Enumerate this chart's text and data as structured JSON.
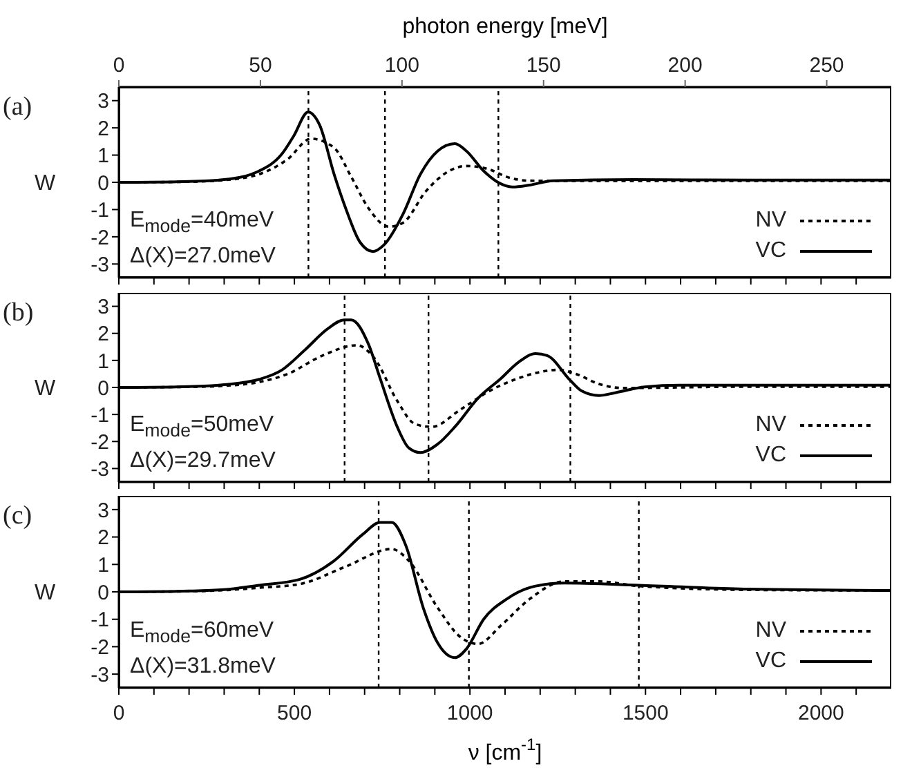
{
  "chart_data": [
    {
      "type": "line",
      "ylabel": "W",
      "x2label": "photon energy [meV]",
      "x2lim": [
        0,
        272.8
      ],
      "x2ticks": [
        0,
        50,
        100,
        150,
        200,
        250
      ],
      "xlim": [
        0,
        2200
      ],
      "xticks": [
        0,
        {
          "value": 100,
          "label": null
        },
        {
          "value": 200,
          "label": null
        },
        {
          "value": 300,
          "label": null
        },
        {
          "value": 400,
          "label": null
        },
        500,
        {
          "value": 600,
          "label": null
        },
        {
          "value": 700,
          "label": null
        },
        {
          "value": 800,
          "label": null
        },
        {
          "value": 900,
          "label": null
        },
        1000,
        {
          "value": 1100,
          "label": null
        },
        {
          "value": 1200,
          "label": null
        },
        {
          "value": 1300,
          "label": null
        },
        {
          "value": 1400,
          "label": null
        },
        1500,
        {
          "value": 1600,
          "label": null
        },
        {
          "value": 1700,
          "label": null
        },
        {
          "value": 1800,
          "label": null
        },
        {
          "value": 1900,
          "label": null
        },
        2000,
        {
          "value": 2100,
          "label": null
        }
      ],
      "ylim": [
        -3.5,
        3.5
      ],
      "yticks": [
        -3,
        -2,
        -1,
        0,
        1,
        2,
        3
      ],
      "tick_labels": "y",
      "legend": "bottom right",
      "grid": false,
      "annotations": [
        "(a)",
        "E$_{mode}$=40meV",
        "Δ(X)=27.0meV"
      ],
      "ref_lines": [
        {
          "axis": "x",
          "value": 540,
          "color": "#000000",
          "line_style": "dotted"
        },
        {
          "axis": "x",
          "value": 758,
          "color": "#000000",
          "line_style": "dotted"
        },
        {
          "axis": "x",
          "value": 1081,
          "color": "#000000",
          "line_style": "dotted"
        }
      ],
      "series": [
        {
          "name": "NV",
          "color": "#000000",
          "line_style": "dotted",
          "x": [
            0,
            200,
            300,
            400,
            481,
            547,
            613,
            662,
            711,
            769,
            810,
            875,
            941,
            990,
            1056,
            1105,
            1170,
            1400,
            1800,
            2200
          ],
          "values": [
            0,
            0.02,
            0.08,
            0.3,
            0.85,
            1.6,
            1.27,
            0.2,
            -0.95,
            -1.63,
            -1.48,
            -0.32,
            0.42,
            0.6,
            0.47,
            0.2,
            0.06,
            0.05,
            0.05,
            0.05
          ]
        },
        {
          "name": "VC",
          "color": "#000000",
          "line_style": "solid",
          "x": [
            0,
            200,
            300,
            400,
            465,
            498,
            539,
            572,
            613,
            646,
            687,
            724,
            755,
            810,
            859,
            908,
            957,
            990,
            1039,
            1080,
            1121,
            1170,
            1236,
            1466,
            1800,
            2200
          ],
          "values": [
            0,
            0.03,
            0.1,
            0.42,
            1.05,
            1.7,
            2.58,
            2.1,
            0.3,
            -0.95,
            -2.2,
            -2.54,
            -2.3,
            -1.15,
            0.3,
            1.15,
            1.42,
            1.15,
            0.42,
            0,
            -0.17,
            -0.1,
            0.06,
            0.1,
            0.08,
            0.08
          ]
        }
      ]
    },
    {
      "type": "line",
      "ylabel": "W",
      "xlim": [
        0,
        2200
      ],
      "xticks": [
        0,
        {
          "value": 100,
          "label": null
        },
        {
          "value": 200,
          "label": null
        },
        {
          "value": 300,
          "label": null
        },
        {
          "value": 400,
          "label": null
        },
        500,
        {
          "value": 600,
          "label": null
        },
        {
          "value": 700,
          "label": null
        },
        {
          "value": 800,
          "label": null
        },
        {
          "value": 900,
          "label": null
        },
        1000,
        {
          "value": 1100,
          "label": null
        },
        {
          "value": 1200,
          "label": null
        },
        {
          "value": 1300,
          "label": null
        },
        {
          "value": 1400,
          "label": null
        },
        1500,
        {
          "value": 1600,
          "label": null
        },
        {
          "value": 1700,
          "label": null
        },
        {
          "value": 1800,
          "label": null
        },
        {
          "value": 1900,
          "label": null
        },
        2000,
        {
          "value": 2100,
          "label": null
        }
      ],
      "ylim": [
        -3.5,
        3.5
      ],
      "yticks": [
        -3,
        -2,
        -1,
        0,
        1,
        2,
        3
      ],
      "tick_labels": "y",
      "legend": "bottom right",
      "grid": false,
      "annotations": [
        "(b)",
        "E$_{mode}$=50meV",
        "Δ(X)=29.7meV"
      ],
      "ref_lines": [
        {
          "axis": "x",
          "value": 643,
          "color": "#000000",
          "line_style": "dotted"
        },
        {
          "axis": "x",
          "value": 882,
          "color": "#000000",
          "line_style": "dotted"
        },
        {
          "axis": "x",
          "value": 1286,
          "color": "#000000",
          "line_style": "dotted"
        }
      ],
      "series": [
        {
          "name": "NV",
          "color": "#000000",
          "line_style": "dotted",
          "x": [
            0,
            200,
            300,
            400,
            481,
            580,
            678,
            728,
            793,
            843,
            891,
            973,
            1056,
            1138,
            1253,
            1302,
            1367,
            1433,
            1800,
            2200
          ],
          "values": [
            0,
            0.02,
            0.06,
            0.2,
            0.5,
            1.18,
            1.56,
            1.08,
            -0.5,
            -1.35,
            -1.46,
            -0.82,
            -0.13,
            0.34,
            0.65,
            0.5,
            0.13,
            -0.02,
            0.03,
            0.03
          ]
        },
        {
          "name": "VC",
          "color": "#000000",
          "line_style": "solid",
          "x": [
            0,
            200,
            300,
            400,
            465,
            531,
            596,
            642,
            662,
            711,
            744,
            793,
            826,
            859,
            908,
            957,
            1023,
            1089,
            1138,
            1187,
            1220,
            1285,
            1318,
            1367,
            1416,
            1498,
            1597,
            2200
          ],
          "values": [
            0,
            0.03,
            0.1,
            0.3,
            0.65,
            1.4,
            2.18,
            2.5,
            2.5,
            1.6,
            0.34,
            -1.46,
            -2.24,
            -2.41,
            -2.1,
            -1.46,
            -0.4,
            0.34,
            0.93,
            1.25,
            1.18,
            0.27,
            -0.13,
            -0.3,
            -0.19,
            0.02,
            0.08,
            0.08
          ]
        }
      ]
    },
    {
      "type": "line",
      "ylabel": "W",
      "xlabel": "ν [cm$^{-1}$]",
      "xlim": [
        0,
        2200
      ],
      "xticks": [
        0,
        {
          "value": 100,
          "label": null
        },
        {
          "value": 200,
          "label": null
        },
        {
          "value": 300,
          "label": null
        },
        {
          "value": 400,
          "label": null
        },
        500,
        {
          "value": 600,
          "label": null
        },
        {
          "value": 700,
          "label": null
        },
        {
          "value": 800,
          "label": null
        },
        {
          "value": 900,
          "label": null
        },
        1000,
        {
          "value": 1100,
          "label": null
        },
        {
          "value": 1200,
          "label": null
        },
        {
          "value": 1300,
          "label": null
        },
        {
          "value": 1400,
          "label": null
        },
        1500,
        {
          "value": 1600,
          "label": null
        },
        {
          "value": 1700,
          "label": null
        },
        {
          "value": 1800,
          "label": null
        },
        {
          "value": 1900,
          "label": null
        },
        2000,
        {
          "value": 2100,
          "label": null
        }
      ],
      "ylim": [
        -3.5,
        3.5
      ],
      "yticks": [
        -3,
        -2,
        -1,
        0,
        1,
        2,
        3
      ],
      "legend": "bottom right",
      "grid": false,
      "annotations": [
        "(c)",
        "E$_{mode}$=60meV",
        "Δ(X)=31.8meV"
      ],
      "ref_lines": [
        {
          "axis": "x",
          "value": 740,
          "color": "#000000",
          "line_style": "dotted"
        },
        {
          "axis": "x",
          "value": 997,
          "color": "#000000",
          "line_style": "dotted"
        },
        {
          "axis": "x",
          "value": 1481,
          "color": "#000000",
          "line_style": "dotted"
        }
      ],
      "series": [
        {
          "name": "NV",
          "color": "#000000",
          "line_style": "dotted",
          "x": [
            0,
            200,
            300,
            400,
            514,
            646,
            777,
            826,
            908,
            973,
            1023,
            1089,
            1170,
            1269,
            1367,
            1482,
            1800,
            2200
          ],
          "values": [
            0,
            0.02,
            0.06,
            0.15,
            0.28,
            0.92,
            1.56,
            1.13,
            -0.58,
            -1.65,
            -1.9,
            -1.22,
            -0.26,
            0.38,
            0.38,
            0.21,
            0.07,
            0.05
          ]
        },
        {
          "name": "VC",
          "color": "#000000",
          "line_style": "solid",
          "x": [
            0,
            200,
            300,
            400,
            514,
            613,
            695,
            744,
            777,
            818,
            867,
            908,
            957,
            990,
            1039,
            1105,
            1187,
            1269,
            1482,
            1794,
            2200
          ],
          "values": [
            0,
            0.03,
            0.08,
            0.24,
            0.45,
            1.13,
            2.1,
            2.53,
            2.53,
            1.67,
            -0.58,
            -1.86,
            -2.4,
            -2.08,
            -1,
            -0.26,
            0.21,
            0.32,
            0.24,
            0.1,
            0.05
          ]
        }
      ]
    }
  ]
}
